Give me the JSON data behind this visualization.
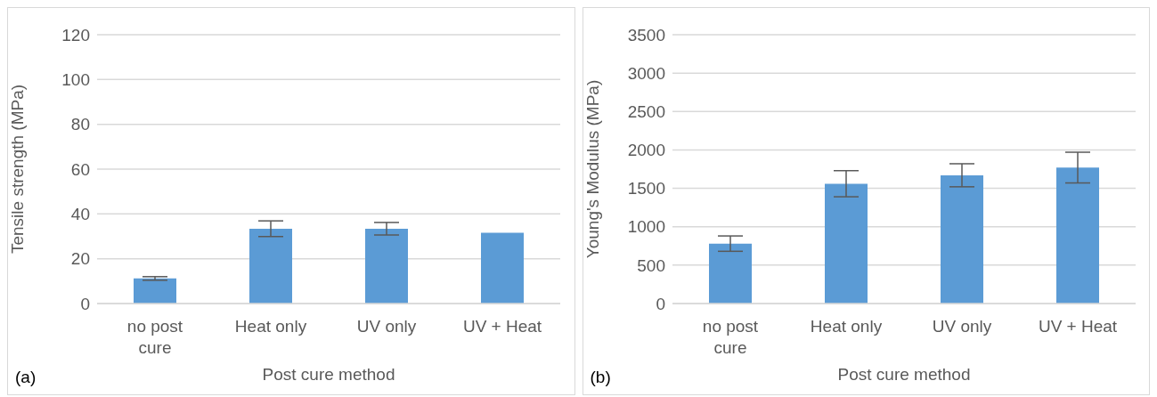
{
  "chart_data": [
    {
      "type": "bar",
      "categories": [
        "no post cure",
        "Heat only",
        "UV only",
        "UV + Heat"
      ],
      "xlabel": "Post cure method",
      "ylabel": "Tensile strength (MPa)",
      "color": "#5b9bd5",
      "values": [
        11.2,
        33.4,
        33.4,
        31.6
      ],
      "errors": [
        0.8,
        3.5,
        2.8,
        null
      ],
      "ylim": [
        0,
        120
      ],
      "yticks": [
        0,
        20,
        40,
        60,
        80,
        100,
        120
      ],
      "grid": "y",
      "annotations": [
        "(a)"
      ]
    },
    {
      "type": "bar",
      "categories": [
        "no post cure",
        "Heat only",
        "UV only",
        "UV + Heat"
      ],
      "xlabel": "Post cure method",
      "ylabel": "Young's Modulus (MPa)",
      "color": "#5b9bd5",
      "values": [
        780,
        1560,
        1670,
        1770
      ],
      "errors": [
        100,
        170,
        150,
        200
      ],
      "ylim": [
        0,
        3500
      ],
      "yticks": [
        0,
        500,
        1000,
        1500,
        2000,
        2500,
        3000,
        3500
      ],
      "grid": "y",
      "annotations": [
        "(b)"
      ]
    }
  ]
}
